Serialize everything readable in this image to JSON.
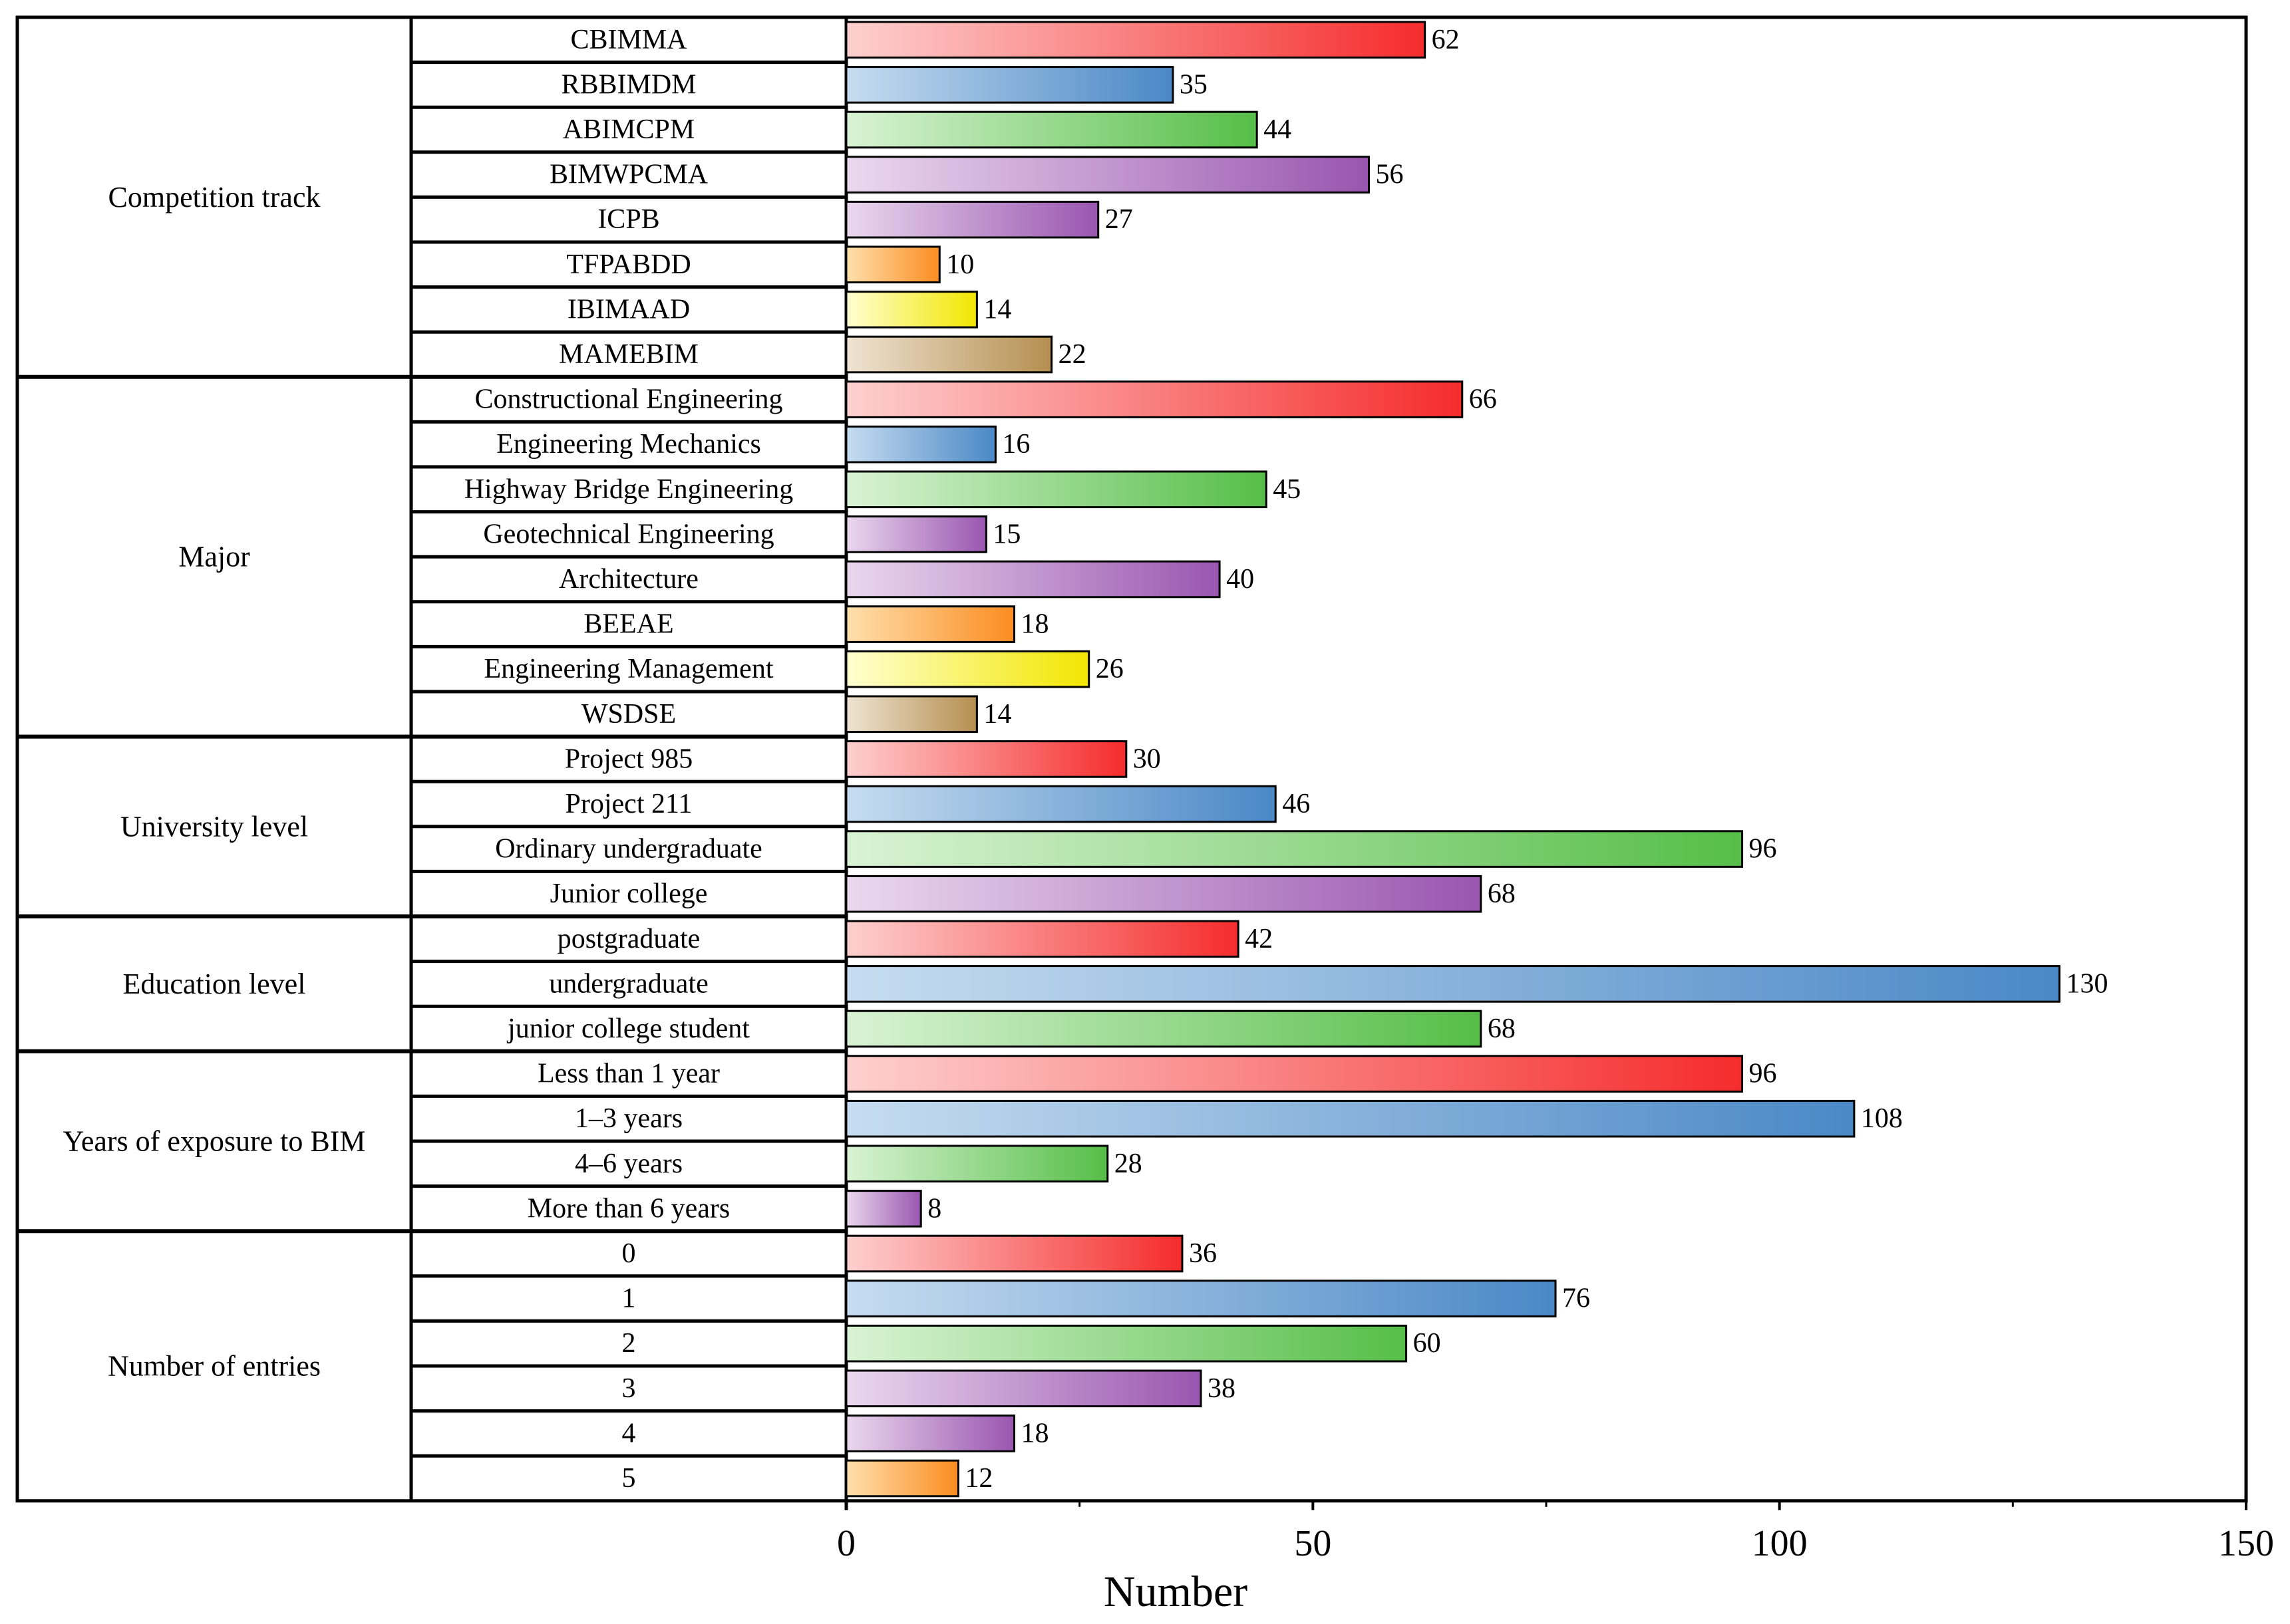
{
  "chart_data": {
    "type": "bar",
    "orientation": "horizontal",
    "xlabel": "Number",
    "xlim": [
      0,
      150
    ],
    "xticks": [
      0,
      50,
      100,
      150
    ],
    "grid": false,
    "colors": {
      "red": [
        "#fdd0cf",
        "#f52c2c"
      ],
      "blue": [
        "#c6dcf0",
        "#4a88c6"
      ],
      "green": [
        "#d9f3d4",
        "#56be48"
      ],
      "purple": [
        "#ead8ee",
        "#9a56b0"
      ],
      "orange": [
        "#ffe0ad",
        "#fb8c21"
      ],
      "yellow": [
        "#ffffd2",
        "#f2e600"
      ],
      "tan": [
        "#efe4d3",
        "#b58f50"
      ]
    },
    "groups": [
      {
        "name": "Competition track",
        "items": [
          {
            "label": "CBIMMA",
            "value": 62,
            "color": "red"
          },
          {
            "label": "RBBIMDM",
            "value": 35,
            "color": "blue"
          },
          {
            "label": "ABIMCPM",
            "value": 44,
            "color": "green"
          },
          {
            "label": "BIMWPCMA",
            "value": 56,
            "color": "purple"
          },
          {
            "label": "ICPB",
            "value": 27,
            "color": "purple"
          },
          {
            "label": "TFPABDD",
            "value": 10,
            "color": "orange"
          },
          {
            "label": "IBIMAAD",
            "value": 14,
            "color": "yellow"
          },
          {
            "label": "MAMEBIM",
            "value": 22,
            "color": "tan"
          }
        ]
      },
      {
        "name": "Major",
        "items": [
          {
            "label": "Constructional Engineering",
            "value": 66,
            "color": "red"
          },
          {
            "label": "Engineering Mechanics",
            "value": 16,
            "color": "blue"
          },
          {
            "label": "Highway Bridge Engineering",
            "value": 45,
            "color": "green"
          },
          {
            "label": "Geotechnical Engineering",
            "value": 15,
            "color": "purple"
          },
          {
            "label": "Architecture",
            "value": 40,
            "color": "purple"
          },
          {
            "label": "BEEAE",
            "value": 18,
            "color": "orange"
          },
          {
            "label": "Engineering Management",
            "value": 26,
            "color": "yellow"
          },
          {
            "label": "WSDSE",
            "value": 14,
            "color": "tan"
          }
        ]
      },
      {
        "name": "University level",
        "items": [
          {
            "label": "Project 985",
            "value": 30,
            "color": "red"
          },
          {
            "label": "Project 211",
            "value": 46,
            "color": "blue"
          },
          {
            "label": "Ordinary undergraduate",
            "value": 96,
            "color": "green"
          },
          {
            "label": "Junior college",
            "value": 68,
            "color": "purple"
          }
        ]
      },
      {
        "name": "Education level",
        "items": [
          {
            "label": "postgraduate",
            "value": 42,
            "color": "red"
          },
          {
            "label": "undergraduate",
            "value": 130,
            "color": "blue"
          },
          {
            "label": "junior college student",
            "value": 68,
            "color": "green"
          }
        ]
      },
      {
        "name": "Years of exposure to BIM",
        "items": [
          {
            "label": "Less than 1 year",
            "value": 96,
            "color": "red"
          },
          {
            "label": "1–3 years",
            "value": 108,
            "color": "blue"
          },
          {
            "label": "4–6 years",
            "value": 28,
            "color": "green"
          },
          {
            "label": "More than 6 years",
            "value": 8,
            "color": "purple"
          }
        ]
      },
      {
        "name": "Number of entries",
        "items": [
          {
            "label": "0",
            "value": 36,
            "color": "red"
          },
          {
            "label": "1",
            "value": 76,
            "color": "blue"
          },
          {
            "label": "2",
            "value": 60,
            "color": "green"
          },
          {
            "label": "3",
            "value": 38,
            "color": "purple"
          },
          {
            "label": "4",
            "value": 18,
            "color": "purple"
          },
          {
            "label": "5",
            "value": 12,
            "color": "orange"
          }
        ]
      }
    ]
  }
}
